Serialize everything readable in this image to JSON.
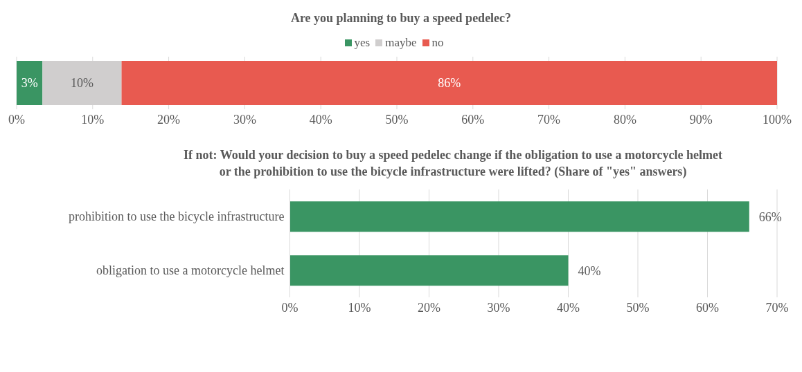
{
  "chart_data": [
    {
      "type": "bar",
      "title": "Are you planning to buy a speed pedelec?",
      "orientation": "horizontal",
      "stacked": true,
      "categories": [
        null
      ],
      "series": [
        {
          "name": "yes",
          "color": "#3a9563",
          "values": [
            3.4
          ],
          "value_labels": [
            "3%"
          ]
        },
        {
          "name": "maybe",
          "color": "#d0cece",
          "values": [
            10.4
          ],
          "value_labels": [
            "10%"
          ]
        },
        {
          "name": "no",
          "color": "#e85a50",
          "values": [
            86.2
          ],
          "value_labels": [
            "86%"
          ]
        }
      ],
      "xlim": [
        0,
        100
      ],
      "xticks": [
        {
          "value": 0,
          "label": "0%"
        },
        {
          "value": 10,
          "label": "10%"
        },
        {
          "value": 20,
          "label": "20%"
        },
        {
          "value": 30,
          "label": "30%"
        },
        {
          "value": 40,
          "label": "40%"
        },
        {
          "value": 50,
          "label": "50%"
        },
        {
          "value": 60,
          "label": "60%"
        },
        {
          "value": 70,
          "label": "70%"
        },
        {
          "value": 80,
          "label": "80%"
        },
        {
          "value": 90,
          "label": "90%"
        },
        {
          "value": 100,
          "label": "100%"
        }
      ],
      "grid": "x",
      "legend": "top"
    },
    {
      "type": "bar",
      "title": "If not: Would your decision to buy a speed pedelec change if the obligation to use a motorcycle helmet or the prohibition to use the bicycle infrastructure were lifted? (Share of \"yes\" answers)",
      "orientation": "horizontal",
      "categories": [
        "prohibition to use the bicycle infrastructure",
        "obligation to use a motorcycle helmet"
      ],
      "values": [
        66,
        40
      ],
      "value_labels": [
        "66%",
        "40%"
      ],
      "color": "#3a9563",
      "xlim": [
        0,
        70
      ],
      "xticks": [
        {
          "value": 0,
          "label": "0%"
        },
        {
          "value": 10,
          "label": "10%"
        },
        {
          "value": 20,
          "label": "20%"
        },
        {
          "value": 30,
          "label": "30%"
        },
        {
          "value": 40,
          "label": "40%"
        },
        {
          "value": 50,
          "label": "50%"
        },
        {
          "value": 60,
          "label": "60%"
        },
        {
          "value": 70,
          "label": "70%"
        }
      ],
      "grid": "x",
      "legend": false
    }
  ]
}
